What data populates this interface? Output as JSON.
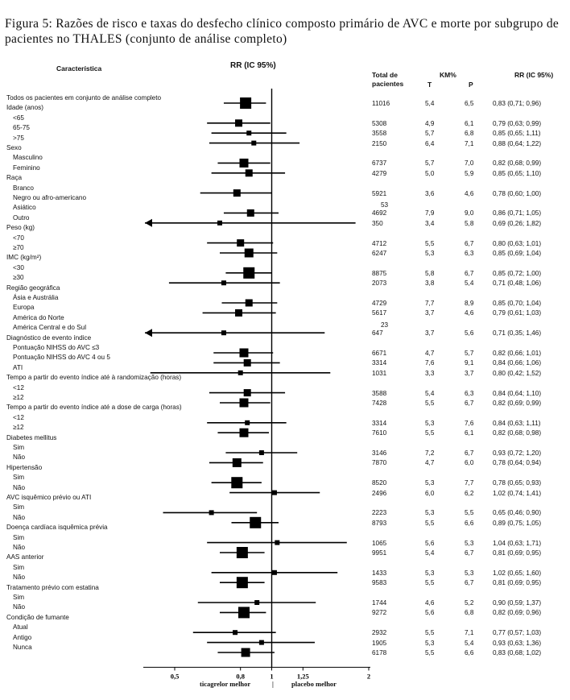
{
  "title": "Figura 5: Razões de risco e taxas do desfecho clínico composto primário de AVC e morte por subgrupo de pacientes no THALES (conjunto de análise completo)",
  "headers": {
    "characteristic": "Característica",
    "rr_plot": "RR (IC 95%)",
    "total_line1": "Total de",
    "total_line2": "pacientes",
    "km": "KM%",
    "km_t": "T",
    "km_p": "P",
    "rr_col": "RR (IC 95%)"
  },
  "footer": {
    "left": "ticagrelor melhor",
    "sep": "|",
    "right": "placebo melhor"
  },
  "chart_data": {
    "type": "forest",
    "x_scale": "log",
    "xlim": [
      0.4,
      2
    ],
    "reference_line": 1,
    "x_ticks": [
      "0,5",
      "0,8",
      "1",
      "1,25",
      "2"
    ],
    "rows": [
      {
        "label": "Todos os pacientes em conjunto de análise completo",
        "indent": 0,
        "n": "11016",
        "t": "5,4",
        "p": "6,5",
        "rr_text": "0,83 (0,71; 0,96)",
        "rr": 0.83,
        "lo": 0.71,
        "hi": 0.96,
        "box": "l"
      },
      {
        "label": "Idade (anos)",
        "indent": 0,
        "header": true
      },
      {
        "label": "<65",
        "indent": 1,
        "n": "5308",
        "t": "4,9",
        "p": "6,1",
        "rr_text": "0,79 (0,63; 0,99)",
        "rr": 0.79,
        "lo": 0.63,
        "hi": 0.99,
        "box": "s"
      },
      {
        "label": "65-75",
        "indent": 1,
        "n": "3558",
        "t": "5,7",
        "p": "6,8",
        "rr_text": "0,85 (0,65; 1,11)",
        "rr": 0.85,
        "lo": 0.65,
        "hi": 1.11,
        "box": "xs"
      },
      {
        "label": ">75",
        "indent": 1,
        "n": "2150",
        "t": "6,4",
        "p": "7,1",
        "rr_text": "0,88 (0,64; 1,22)",
        "rr": 0.88,
        "lo": 0.64,
        "hi": 1.22,
        "box": "xs"
      },
      {
        "label": "Sexo",
        "indent": 0,
        "header": true
      },
      {
        "label": "Masculino",
        "indent": 1,
        "n": "6737",
        "t": "5,7",
        "p": "7,0",
        "rr_text": "0,82 (0,68; 0,99)",
        "rr": 0.82,
        "lo": 0.68,
        "hi": 0.99,
        "box": "m"
      },
      {
        "label": "Feminino",
        "indent": 1,
        "n": "4279",
        "t": "5,0",
        "p": "5,9",
        "rr_text": "0,85 (0,65; 1,10)",
        "rr": 0.85,
        "lo": 0.65,
        "hi": 1.1,
        "box": "s"
      },
      {
        "label": "Raça",
        "indent": 0,
        "header": true
      },
      {
        "label": "Branco",
        "indent": 1,
        "n": "5921",
        "t": "3,6",
        "p": "4,6",
        "rr_text": "0,78 (0,60; 1,00)",
        "rr": 0.78,
        "lo": 0.6,
        "hi": 1.0,
        "box": "s"
      },
      {
        "label": "Negro ou afro-americano",
        "indent": 1,
        "n_below": "53"
      },
      {
        "label": "Asiático",
        "indent": 1,
        "n": "4692",
        "t": "7,9",
        "p": "9,0",
        "rr_text": "0,86 (0,71; 1,05)",
        "rr": 0.86,
        "lo": 0.71,
        "hi": 1.05,
        "box": "s"
      },
      {
        "label": "Outro",
        "indent": 1,
        "n": "350",
        "t": "3,4",
        "p": "5,8",
        "rr_text": "0,69 (0,26; 1,82)",
        "rr": 0.69,
        "lo": 0.26,
        "hi": 1.82,
        "box": "xs",
        "arrow_left": true
      },
      {
        "label": "Peso (kg)",
        "indent": 0,
        "header": true
      },
      {
        "label": "<70",
        "indent": 1,
        "n": "4712",
        "t": "5,5",
        "p": "6,7",
        "rr_text": "0,80 (0,63; 1,01)",
        "rr": 0.8,
        "lo": 0.63,
        "hi": 1.01,
        "box": "s"
      },
      {
        "label": "≥70",
        "indent": 1,
        "n": "6247",
        "t": "5,3",
        "p": "6,3",
        "rr_text": "0,85 (0,69; 1,04)",
        "rr": 0.85,
        "lo": 0.69,
        "hi": 1.04,
        "box": "m"
      },
      {
        "label": "IMC (kg/m²)",
        "indent": 0,
        "header": true
      },
      {
        "label": "<30",
        "indent": 1,
        "n": "8875",
        "t": "5,8",
        "p": "6,7",
        "rr_text": "0,85 (0,72; 1,00)",
        "rr": 0.85,
        "lo": 0.72,
        "hi": 1.0,
        "box": "l"
      },
      {
        "label": "≥30",
        "indent": 1,
        "n": "2073",
        "t": "3,8",
        "p": "5,4",
        "rr_text": "0,71 (0,48; 1,06)",
        "rr": 0.71,
        "lo": 0.48,
        "hi": 1.06,
        "box": "xs"
      },
      {
        "label": "Região geográfica",
        "indent": 0,
        "header": true
      },
      {
        "label": "Ásia e Austrália",
        "indent": 1,
        "n": "4729",
        "t": "7,7",
        "p": "8,9",
        "rr_text": "0,85 (0,70; 1,04)",
        "rr": 0.85,
        "lo": 0.7,
        "hi": 1.04,
        "box": "s"
      },
      {
        "label": "Europa",
        "indent": 1,
        "n": "5617",
        "t": "3,7",
        "p": "4,6",
        "rr_text": "0,79 (0,61; 1,03)",
        "rr": 0.79,
        "lo": 0.61,
        "hi": 1.03,
        "box": "s"
      },
      {
        "label": "América do Norte",
        "indent": 1,
        "n_below": "23"
      },
      {
        "label": "América Central e do Sul",
        "indent": 1,
        "n": "647",
        "t": "3,7",
        "p": "5,6",
        "rr_text": "0,71 (0,35; 1,46)",
        "rr": 0.71,
        "lo": 0.35,
        "hi": 1.46,
        "box": "xs",
        "arrow_left": true
      },
      {
        "label": "Diagnóstico de evento índice",
        "indent": 0,
        "header": true
      },
      {
        "label": "Pontuação NIHSS do AVC ≤3",
        "indent": 1,
        "n": "6671",
        "t": "4,7",
        "p": "5,7",
        "rr_text": "0,82 (0,66; 1,01)",
        "rr": 0.82,
        "lo": 0.66,
        "hi": 1.01,
        "box": "m"
      },
      {
        "label": "Pontuação NIHSS do AVC 4 ou 5",
        "indent": 1,
        "n": "3314",
        "t": "7,6",
        "p": "9,1",
        "rr_text": "0,84 (0,66; 1,06)",
        "rr": 0.84,
        "lo": 0.66,
        "hi": 1.06,
        "box": "s"
      },
      {
        "label": "ATI",
        "indent": 1,
        "n": "1031",
        "t": "3,3",
        "p": "3,7",
        "rr_text": "0,80 (0,42; 1,52)",
        "rr": 0.8,
        "lo": 0.42,
        "hi": 1.52,
        "box": "xs"
      },
      {
        "label": "Tempo a partir do evento índice até à randomização (horas)",
        "indent": 0,
        "header": true
      },
      {
        "label": "<12",
        "indent": 1,
        "n": "3588",
        "t": "5,4",
        "p": "6,3",
        "rr_text": "0,84 (0,64; 1,10)",
        "rr": 0.84,
        "lo": 0.64,
        "hi": 1.1,
        "box": "s"
      },
      {
        "label": "≥12",
        "indent": 1,
        "n": "7428",
        "t": "5,5",
        "p": "6,7",
        "rr_text": "0,82 (0,69; 0,99)",
        "rr": 0.82,
        "lo": 0.69,
        "hi": 0.99,
        "box": "m"
      },
      {
        "label": "Tempo a partir do evento índice até a dose de carga (horas)",
        "indent": 0,
        "header": true
      },
      {
        "label": "<12",
        "indent": 1,
        "n": "3314",
        "t": "5,3",
        "p": "7,6",
        "rr_text": "0,84 (0,63; 1,11)",
        "rr": 0.84,
        "lo": 0.63,
        "hi": 1.11,
        "box": "xs"
      },
      {
        "label": "≥12",
        "indent": 1,
        "n": "7610",
        "t": "5,5",
        "p": "6,1",
        "rr_text": "0,82 (0,68; 0,98)",
        "rr": 0.82,
        "lo": 0.68,
        "hi": 0.98,
        "box": "m"
      },
      {
        "label": "Diabetes mellitus",
        "indent": 0,
        "header": true
      },
      {
        "label": "Sim",
        "indent": 1,
        "n": "3146",
        "t": "7,2",
        "p": "6,7",
        "rr_text": "0,93 (0,72; 1,20)",
        "rr": 0.93,
        "lo": 0.72,
        "hi": 1.2,
        "box": "xs"
      },
      {
        "label": "Não",
        "indent": 1,
        "n": "7870",
        "t": "4,7",
        "p": "6,0",
        "rr_text": "0,78 (0,64; 0,94)",
        "rr": 0.78,
        "lo": 0.64,
        "hi": 0.94,
        "box": "m"
      },
      {
        "label": "Hipertensão",
        "indent": 0,
        "header": true
      },
      {
        "label": "Sim",
        "indent": 1,
        "n": "8520",
        "t": "5,3",
        "p": "7,7",
        "rr_text": "0,78 (0,65; 0,93)",
        "rr": 0.78,
        "lo": 0.65,
        "hi": 0.93,
        "box": "l"
      },
      {
        "label": "Não",
        "indent": 1,
        "n": "2496",
        "t": "6,0",
        "p": "6,2",
        "rr_text": "1,02 (0,74; 1,41)",
        "rr": 1.02,
        "lo": 0.74,
        "hi": 1.41,
        "box": "xs"
      },
      {
        "label": "AVC isquêmico prévio ou ATI",
        "indent": 0,
        "header": true
      },
      {
        "label": "Sim",
        "indent": 1,
        "n": "2223",
        "t": "5,3",
        "p": "5,5",
        "rr_text": "0,65 (0,46; 0,90)",
        "rr": 0.65,
        "lo": 0.46,
        "hi": 0.9,
        "box": "xs"
      },
      {
        "label": "Não",
        "indent": 1,
        "n": "8793",
        "t": "5,5",
        "p": "6,6",
        "rr_text": "0,89 (0,75; 1,05)",
        "rr": 0.89,
        "lo": 0.75,
        "hi": 1.05,
        "box": "l"
      },
      {
        "label": "Doença cardíaca isquêmica prévia",
        "indent": 0,
        "header": true
      },
      {
        "label": "Sim",
        "indent": 1,
        "n": "1065",
        "t": "5,6",
        "p": "5,3",
        "rr_text": "1,04 (0,63; 1,71)",
        "rr": 1.04,
        "lo": 0.63,
        "hi": 1.71,
        "box": "xs"
      },
      {
        "label": "Não",
        "indent": 1,
        "n": "9951",
        "t": "5,4",
        "p": "6,7",
        "rr_text": "0,81 (0,69; 0,95)",
        "rr": 0.81,
        "lo": 0.69,
        "hi": 0.95,
        "box": "l"
      },
      {
        "label": "AAS anterior",
        "indent": 0,
        "header": true
      },
      {
        "label": "Sim",
        "indent": 1,
        "n": "1433",
        "t": "5,3",
        "p": "5,3",
        "rr_text": "1,02 (0,65; 1,60)",
        "rr": 1.02,
        "lo": 0.65,
        "hi": 1.6,
        "box": "xs"
      },
      {
        "label": "Não",
        "indent": 1,
        "n": "9583",
        "t": "5,5",
        "p": "6,7",
        "rr_text": "0,81 (0,69; 0,95)",
        "rr": 0.81,
        "lo": 0.69,
        "hi": 0.95,
        "box": "l"
      },
      {
        "label": "Tratamento prévio com estatina",
        "indent": 0,
        "header": true
      },
      {
        "label": "Sim",
        "indent": 1,
        "n": "1744",
        "t": "4,6",
        "p": "5,2",
        "rr_text": "0,90 (0,59; 1,37)",
        "rr": 0.9,
        "lo": 0.59,
        "hi": 1.37,
        "box": "xs"
      },
      {
        "label": "Não",
        "indent": 1,
        "n": "9272",
        "t": "5,6",
        "p": "6,8",
        "rr_text": "0,82 (0,69; 0,96)",
        "rr": 0.82,
        "lo": 0.69,
        "hi": 0.96,
        "box": "l"
      },
      {
        "label": "Condição de fumante",
        "indent": 0,
        "header": true
      },
      {
        "label": "Atual",
        "indent": 1,
        "n": "2932",
        "t": "5,5",
        "p": "7,1",
        "rr_text": "0,77 (0,57; 1,03)",
        "rr": 0.77,
        "lo": 0.57,
        "hi": 1.03,
        "box": "xs"
      },
      {
        "label": "Antigo",
        "indent": 1,
        "n": "1905",
        "t": "5,3",
        "p": "5,4",
        "rr_text": "0,93 (0,63; 1,36)",
        "rr": 0.93,
        "lo": 0.63,
        "hi": 1.36,
        "box": "xs"
      },
      {
        "label": "Nunca",
        "indent": 1,
        "n": "6178",
        "t": "5,5",
        "p": "6,6",
        "rr_text": "0,83 (0,68; 1,02)",
        "rr": 0.83,
        "lo": 0.68,
        "hi": 1.02,
        "box": "m"
      }
    ]
  }
}
